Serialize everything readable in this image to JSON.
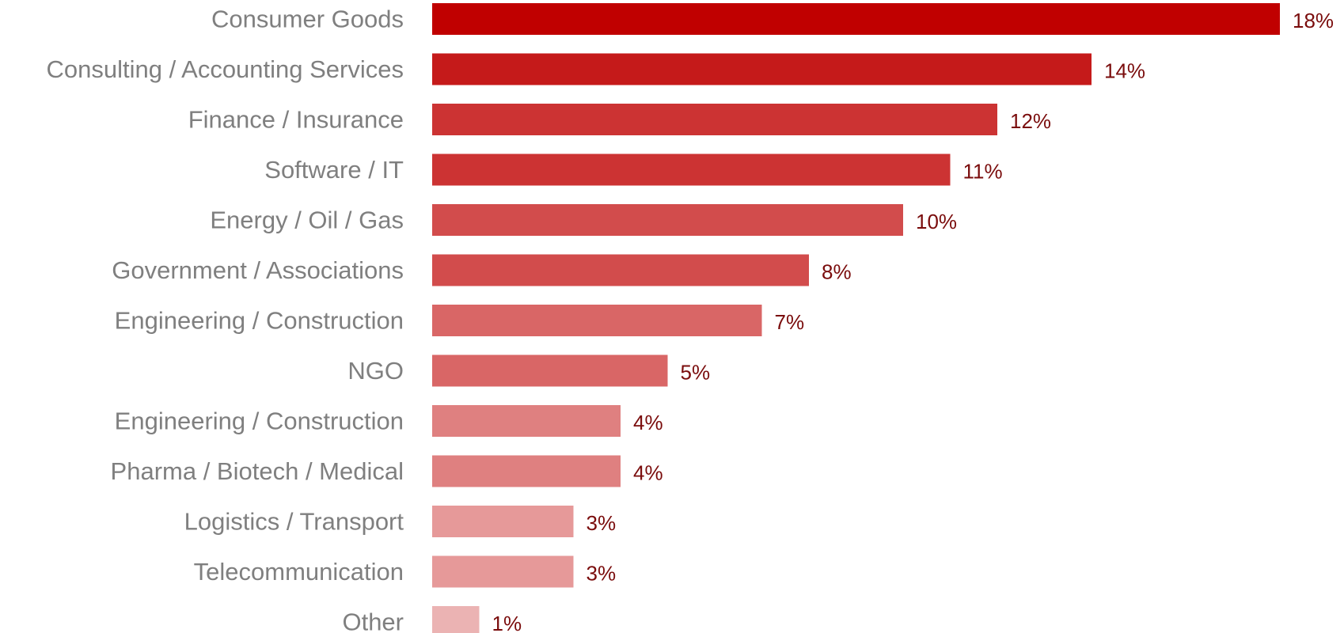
{
  "chart_data": {
    "type": "bar",
    "orientation": "horizontal",
    "categories": [
      "Consumer Goods",
      "Consulting / Accounting Services",
      "Finance / Insurance",
      "Software / IT",
      "Energy / Oil / Gas",
      "Government / Associations",
      "Engineering / Construction",
      "NGO",
      "Engineering / Construction",
      "Pharma / Biotech / Medical",
      "Logistics / Transport",
      "Telecommunication",
      "Other"
    ],
    "values": [
      18,
      14,
      12,
      11,
      10,
      8,
      7,
      5,
      4,
      4,
      3,
      3,
      1
    ],
    "value_labels": [
      "18%",
      "14%",
      "12%",
      "11%",
      "10%",
      "8%",
      "7%",
      "5%",
      "4%",
      "4%",
      "3%",
      "3%",
      "1%"
    ],
    "bar_colors": [
      "#c00000",
      "#c51a1a",
      "#cc3333",
      "#cc3333",
      "#d24c4c",
      "#d24c4c",
      "#d96666",
      "#d96666",
      "#df8080",
      "#df8080",
      "#e69999",
      "#e69999",
      "#ebb3b3"
    ],
    "unit": "%",
    "title": "",
    "xlabel": "",
    "ylabel": "",
    "grid": false,
    "axes_visible": false,
    "legend": "none"
  }
}
